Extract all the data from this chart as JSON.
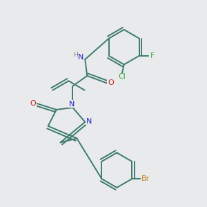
{
  "background_color": "#e8eaeb",
  "bond_color": "#3d7a6e",
  "atom_colors": {
    "N": "#2222cc",
    "O": "#cc2222",
    "Br": "#cc8833",
    "Cl": "#44aa44",
    "F": "#44aa44",
    "H": "#777777",
    "C": "#000000"
  },
  "bg": "#e8eaeb"
}
